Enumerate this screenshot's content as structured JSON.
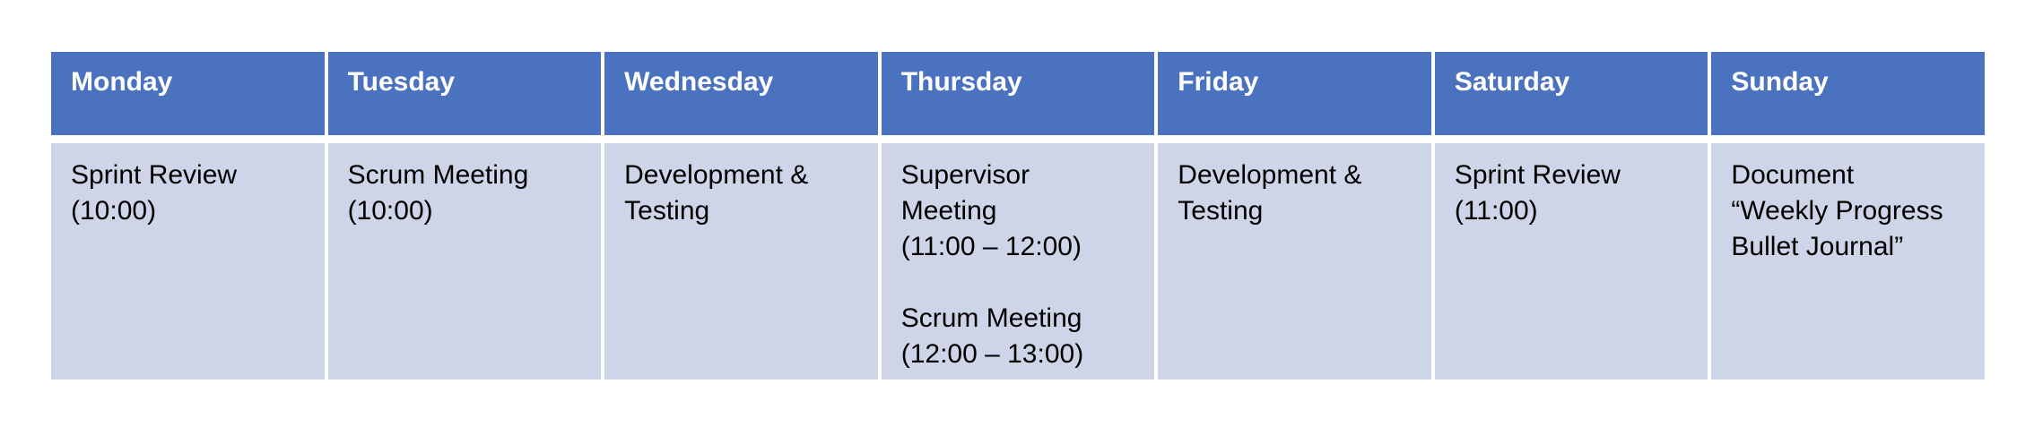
{
  "schedule": {
    "days": [
      {
        "name": "Monday",
        "events": [
          "Sprint Review\n(10:00)"
        ]
      },
      {
        "name": "Tuesday",
        "events": [
          "Scrum Meeting\n(10:00)"
        ]
      },
      {
        "name": "Wednesday",
        "events": [
          "Development &\nTesting"
        ]
      },
      {
        "name": "Thursday",
        "events": [
          "Supervisor\nMeeting\n(11:00 – 12:00)",
          "Scrum Meeting\n(12:00 – 13:00)"
        ]
      },
      {
        "name": "Friday",
        "events": [
          "Development &\nTesting"
        ]
      },
      {
        "name": "Saturday",
        "events": [
          "Sprint Review\n(11:00)"
        ]
      },
      {
        "name": "Sunday",
        "events": [
          "Document\n“Weekly Progress\nBullet Journal”"
        ]
      }
    ],
    "colors": {
      "header_background": "#4a72bf",
      "header_text": "#ffffff",
      "cell_background": "#cfd5e8",
      "cell_text": "#000000"
    }
  }
}
